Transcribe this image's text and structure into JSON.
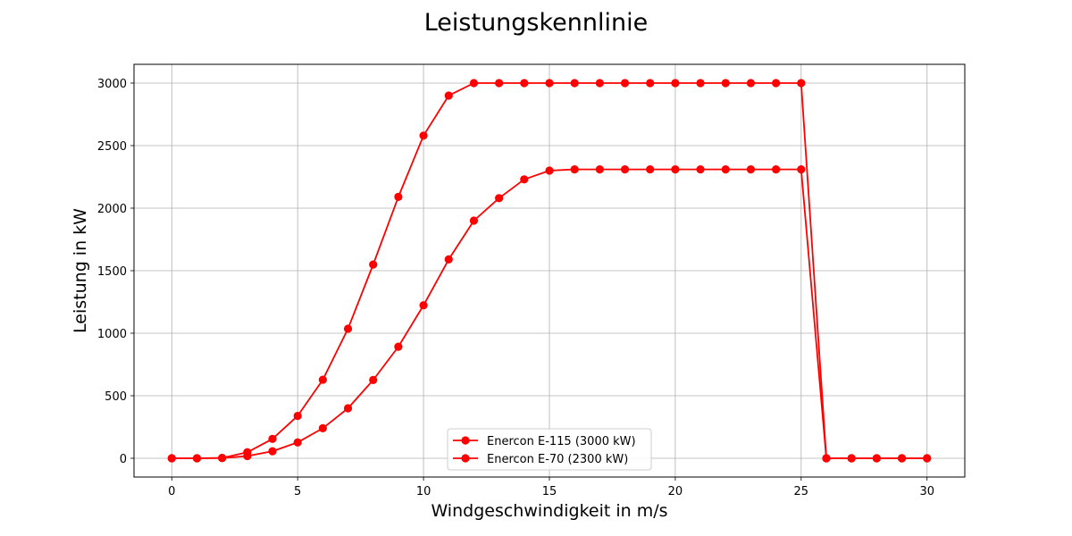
{
  "chart_data": {
    "type": "line",
    "title": "Leistungskennlinie",
    "xlabel": "Windgeschwindigkeit in m/s",
    "ylabel": "Leistung in kW",
    "xlim": [
      -1.5,
      31.5
    ],
    "ylim": [
      -150,
      3150
    ],
    "xticks": [
      0,
      5,
      10,
      15,
      20,
      25,
      30
    ],
    "yticks": [
      0,
      500,
      1000,
      1500,
      2000,
      2500,
      3000
    ],
    "grid": true,
    "legend_position": "lower center",
    "x": [
      0,
      1,
      2,
      3,
      4,
      5,
      6,
      7,
      8,
      9,
      10,
      11,
      12,
      13,
      14,
      15,
      16,
      17,
      18,
      19,
      20,
      21,
      22,
      23,
      24,
      25,
      26,
      27,
      28,
      29,
      30
    ],
    "series": [
      {
        "name": "Enercon E-115 (3000 kW)",
        "color": "#ff0000",
        "marker": "circle",
        "values": [
          0,
          0,
          3,
          48,
          155,
          339,
          628,
          1036,
          1549,
          2090,
          2580,
          2900,
          3000,
          3000,
          3000,
          3000,
          3000,
          3000,
          3000,
          3000,
          3000,
          3000,
          3000,
          3000,
          3000,
          3000,
          0,
          0,
          0,
          0,
          0
        ]
      },
      {
        "name": "Enercon E-70 (2300 kW)",
        "color": "#ff0000",
        "marker": "circle",
        "values": [
          0,
          0,
          2,
          18,
          56,
          127,
          240,
          400,
          626,
          892,
          1223,
          1590,
          1900,
          2080,
          2230,
          2300,
          2310,
          2310,
          2310,
          2310,
          2310,
          2310,
          2310,
          2310,
          2310,
          2310,
          0,
          0,
          0,
          0,
          0
        ]
      }
    ]
  }
}
